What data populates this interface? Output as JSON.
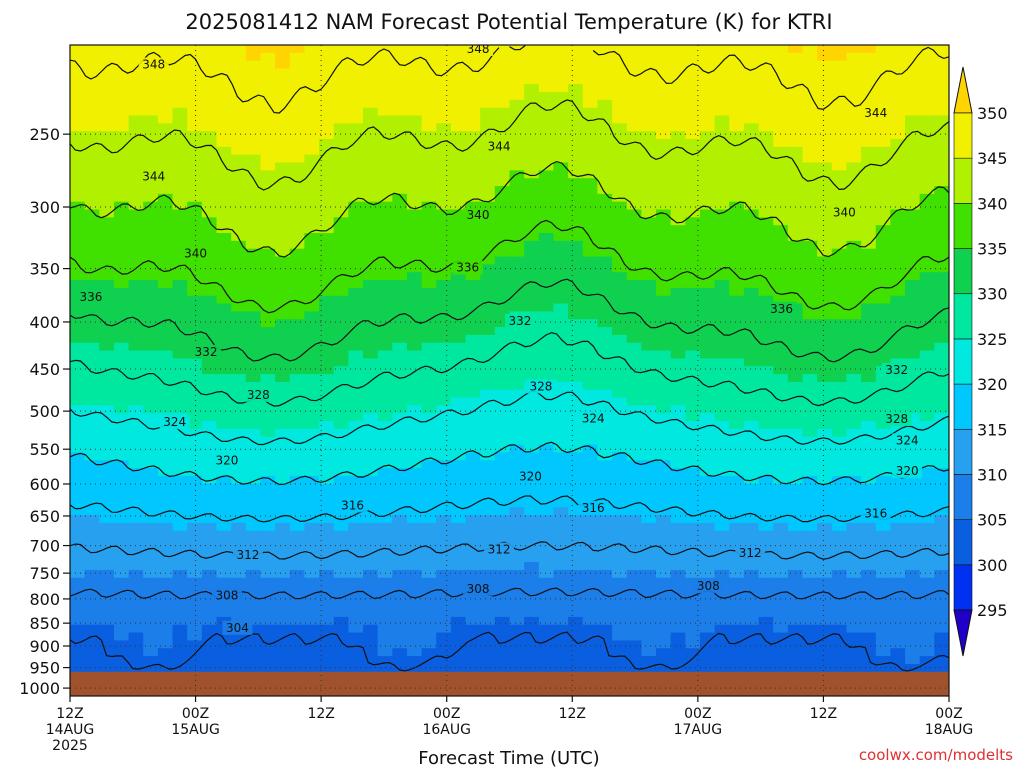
{
  "chart_data": {
    "type": "heatmap",
    "title": "2025081412 NAM Forecast Potential Temperature (K) for KTRI",
    "xlabel": "Forecast Time (UTC)",
    "ylabel": "",
    "y_scale": "log",
    "y_reversed": true,
    "ylim": [
      200,
      1020
    ],
    "y_ticks": [
      250,
      300,
      350,
      400,
      450,
      500,
      550,
      600,
      650,
      700,
      750,
      800,
      850,
      900,
      950,
      1000
    ],
    "surface_pressure": 960,
    "x_hours": [
      0,
      12,
      24,
      36,
      48,
      60,
      72,
      84,
      96
    ],
    "x_ticks": [
      {
        "hour": 0,
        "lines": [
          "12Z",
          "14AUG",
          "2025"
        ]
      },
      {
        "hour": 12,
        "lines": [
          "00Z",
          "15AUG"
        ]
      },
      {
        "hour": 24,
        "lines": [
          "12Z"
        ]
      },
      {
        "hour": 36,
        "lines": [
          "00Z",
          "16AUG"
        ]
      },
      {
        "hour": 48,
        "lines": [
          "12Z"
        ]
      },
      {
        "hour": 60,
        "lines": [
          "00Z",
          "17AUG"
        ]
      },
      {
        "hour": 72,
        "lines": [
          "12Z"
        ]
      },
      {
        "hour": 84,
        "lines": [
          "00Z",
          "18AUG"
        ]
      }
    ],
    "x_end_hour": 84,
    "colorbar": {
      "levels": [
        295,
        300,
        305,
        310,
        315,
        320,
        325,
        330,
        335,
        340,
        345,
        350
      ],
      "colors": [
        "#2000c8",
        "#0030f0",
        "#0a5ee0",
        "#1c7ee8",
        "#28a0f0",
        "#00c8ff",
        "#00e8e0",
        "#00e8a0",
        "#10d050",
        "#40e000",
        "#b0f000",
        "#f0f000",
        "#ffd400"
      ]
    },
    "contour_levels": [
      304,
      308,
      312,
      316,
      320,
      324,
      328,
      332,
      336,
      340,
      344,
      348
    ],
    "theta_profile": [
      {
        "p": 950,
        "theta": 302
      },
      {
        "p": 900,
        "theta": 303.5
      },
      {
        "p": 850,
        "theta": 305
      },
      {
        "p": 800,
        "theta": 307.5
      },
      {
        "p": 750,
        "theta": 310
      },
      {
        "p": 700,
        "theta": 312.5
      },
      {
        "p": 650,
        "theta": 315.5
      },
      {
        "p": 600,
        "theta": 318.5
      },
      {
        "p": 550,
        "theta": 321.5
      },
      {
        "p": 500,
        "theta": 325
      },
      {
        "p": 450,
        "theta": 328.5
      },
      {
        "p": 400,
        "theta": 332
      },
      {
        "p": 350,
        "theta": 336
      },
      {
        "p": 300,
        "theta": 340
      },
      {
        "p": 250,
        "theta": 344.5
      },
      {
        "p": 200,
        "theta": 349
      }
    ],
    "contour_labels": [
      {
        "text": "348",
        "hour": 8,
        "p": 210
      },
      {
        "text": "348",
        "hour": 39,
        "p": 202
      },
      {
        "text": "344",
        "hour": 8,
        "p": 278
      },
      {
        "text": "344",
        "hour": 41,
        "p": 258
      },
      {
        "text": "344",
        "hour": 77,
        "p": 237
      },
      {
        "text": "340",
        "hour": 12,
        "p": 337
      },
      {
        "text": "340",
        "hour": 39,
        "p": 306
      },
      {
        "text": "340",
        "hour": 74,
        "p": 304
      },
      {
        "text": "336",
        "hour": 2,
        "p": 376
      },
      {
        "text": "336",
        "hour": 38,
        "p": 349
      },
      {
        "text": "336",
        "hour": 68,
        "p": 387
      },
      {
        "text": "332",
        "hour": 13,
        "p": 431
      },
      {
        "text": "332",
        "hour": 43,
        "p": 399
      },
      {
        "text": "332",
        "hour": 79,
        "p": 451
      },
      {
        "text": "328",
        "hour": 18,
        "p": 480
      },
      {
        "text": "328",
        "hour": 45,
        "p": 470
      },
      {
        "text": "328",
        "hour": 79,
        "p": 510
      },
      {
        "text": "324",
        "hour": 10,
        "p": 514
      },
      {
        "text": "324",
        "hour": 50,
        "p": 509
      },
      {
        "text": "324",
        "hour": 80,
        "p": 538
      },
      {
        "text": "320",
        "hour": 15,
        "p": 566
      },
      {
        "text": "320",
        "hour": 44,
        "p": 589
      },
      {
        "text": "320",
        "hour": 80,
        "p": 581
      },
      {
        "text": "316",
        "hour": 27,
        "p": 633
      },
      {
        "text": "316",
        "hour": 50,
        "p": 637
      },
      {
        "text": "316",
        "hour": 77,
        "p": 646
      },
      {
        "text": "312",
        "hour": 17,
        "p": 717
      },
      {
        "text": "312",
        "hour": 41,
        "p": 707
      },
      {
        "text": "312",
        "hour": 65,
        "p": 713
      },
      {
        "text": "308",
        "hour": 15,
        "p": 793
      },
      {
        "text": "308",
        "hour": 39,
        "p": 780
      },
      {
        "text": "308",
        "hour": 61,
        "p": 775
      },
      {
        "text": "304",
        "hour": 16,
        "p": 860
      }
    ]
  },
  "credit": "coolwx.com/modelts"
}
